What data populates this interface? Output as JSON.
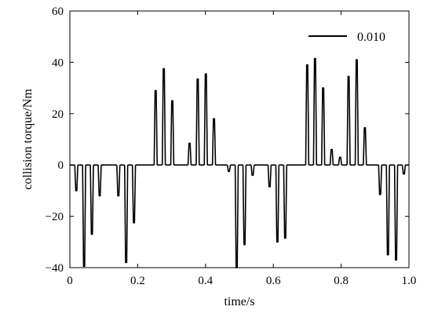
{
  "chart_data": {
    "type": "line",
    "title": "",
    "xlabel": "time/s",
    "ylabel": "collision torque/Nm",
    "xlim": [
      0,
      1.0
    ],
    "ylim": [
      -40,
      60
    ],
    "xticks": [
      0,
      0.2,
      0.4,
      0.6,
      0.8,
      1.0
    ],
    "xtick_labels": [
      "0",
      "0.2",
      "0.4",
      "0.6",
      "0.8",
      "1.0"
    ],
    "yticks": [
      -40,
      -20,
      0,
      20,
      40,
      60
    ],
    "ytick_labels": [
      "−40",
      "−20",
      "0",
      "20",
      "40",
      "60"
    ],
    "grid": false,
    "legend_position": "top-right",
    "series": [
      {
        "name": "0.010",
        "color": "#000000",
        "pulse_half_width": 0.0045,
        "peaks": [
          {
            "t": 0.019,
            "v": -10
          },
          {
            "t": 0.042,
            "v": -39.5
          },
          {
            "t": 0.065,
            "v": -27
          },
          {
            "t": 0.088,
            "v": -12
          },
          {
            "t": 0.143,
            "v": -12
          },
          {
            "t": 0.166,
            "v": -38
          },
          {
            "t": 0.189,
            "v": -22.5
          },
          {
            "t": 0.253,
            "v": 29
          },
          {
            "t": 0.277,
            "v": 37.5
          },
          {
            "t": 0.302,
            "v": 25
          },
          {
            "t": 0.353,
            "v": 8.5
          },
          {
            "t": 0.377,
            "v": 33.5
          },
          {
            "t": 0.401,
            "v": 35.5
          },
          {
            "t": 0.425,
            "v": 18
          },
          {
            "t": 0.469,
            "v": -2.5
          },
          {
            "t": 0.492,
            "v": -40
          },
          {
            "t": 0.515,
            "v": -31
          },
          {
            "t": 0.539,
            "v": -4
          },
          {
            "t": 0.589,
            "v": -8.5
          },
          {
            "t": 0.612,
            "v": -30
          },
          {
            "t": 0.635,
            "v": -28.5
          },
          {
            "t": 0.7,
            "v": 39
          },
          {
            "t": 0.723,
            "v": 41.5
          },
          {
            "t": 0.747,
            "v": 30
          },
          {
            "t": 0.772,
            "v": 6
          },
          {
            "t": 0.797,
            "v": 3
          },
          {
            "t": 0.822,
            "v": 34.5
          },
          {
            "t": 0.846,
            "v": 41
          },
          {
            "t": 0.87,
            "v": 14.5
          },
          {
            "t": 0.915,
            "v": -11.5
          },
          {
            "t": 0.938,
            "v": -35
          },
          {
            "t": 0.962,
            "v": -37
          },
          {
            "t": 0.985,
            "v": -3.5
          }
        ]
      }
    ]
  }
}
